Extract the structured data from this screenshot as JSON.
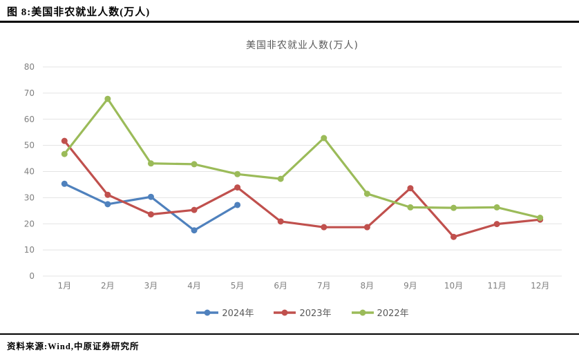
{
  "page": {
    "header_title": "图 8:美国非农就业人数(万人)",
    "source_label": "资料来源:Wind,中原证券研究所"
  },
  "chart_data": {
    "type": "line",
    "title": "美国非农就业人数(万人)",
    "categories": [
      "1月",
      "2月",
      "3月",
      "4月",
      "5月",
      "6月",
      "7月",
      "8月",
      "9月",
      "10月",
      "11月",
      "12月"
    ],
    "series": [
      {
        "name": "2024年",
        "color": "#4F81BD",
        "values": [
          35.3,
          27.5,
          30.3,
          17.5,
          27.2
        ]
      },
      {
        "name": "2023年",
        "color": "#C0504D",
        "values": [
          51.7,
          31.1,
          23.6,
          25.3,
          33.9,
          20.9,
          18.7,
          18.7,
          33.6,
          15.0,
          19.9,
          21.6
        ]
      },
      {
        "name": "2022年",
        "color": "#9BBB59",
        "values": [
          46.7,
          67.8,
          43.1,
          42.8,
          39.0,
          37.2,
          52.8,
          31.5,
          26.3,
          26.1,
          26.3,
          22.3
        ]
      }
    ],
    "ylim": [
      0,
      80
    ],
    "ytick_step": 10,
    "grid": true,
    "legend_position": "bottom",
    "colors": {
      "gridline": "#E3E3E3",
      "tick_label": "#7F7F7F",
      "title": "#595959"
    }
  }
}
